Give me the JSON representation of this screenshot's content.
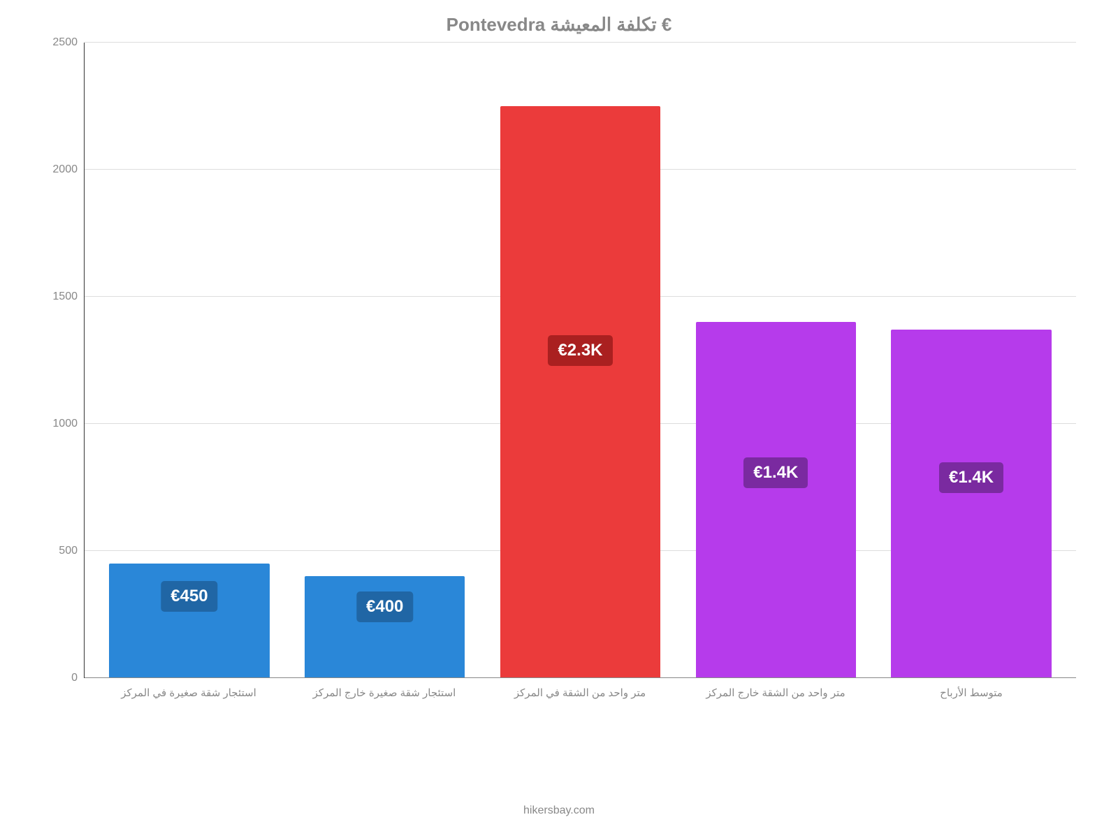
{
  "chart": {
    "type": "bar",
    "title": "Pontevedra تكلفة المعيشة €",
    "title_fontsize": 26,
    "title_color": "#888888",
    "background_color": "#ffffff",
    "grid_color": "#dddddd",
    "axis_label_color": "#888888",
    "ylim": [
      0,
      2500
    ],
    "ytick_step": 500,
    "yticks": [
      "0",
      "500",
      "1000",
      "1500",
      "2000",
      "2500"
    ],
    "categories": [
      "استئجار شقة صغيرة في المركز",
      "استئجار شقة صغيرة خارج المركز",
      "متر واحد من الشقة في المركز",
      "متر واحد من الشقة خارج المركز",
      "متوسط الأرباح"
    ],
    "values": [
      450,
      400,
      2250,
      1400,
      1370
    ],
    "bar_colors": [
      "#2a87d8",
      "#2a87d8",
      "#eb3b3b",
      "#b63beb",
      "#b63beb"
    ],
    "bar_labels": [
      "€450",
      "€400",
      "€2.3K",
      "€1.4K",
      "€1.4K"
    ],
    "label_bg_colors": [
      "#2066a5",
      "#2066a5",
      "#aa2020",
      "#7a2aa0",
      "#7a2aa0"
    ],
    "label_fontsize": 24,
    "xlabel_fontsize": 15,
    "bar_width": 0.82
  },
  "footer": {
    "text": "hikersbay.com"
  }
}
